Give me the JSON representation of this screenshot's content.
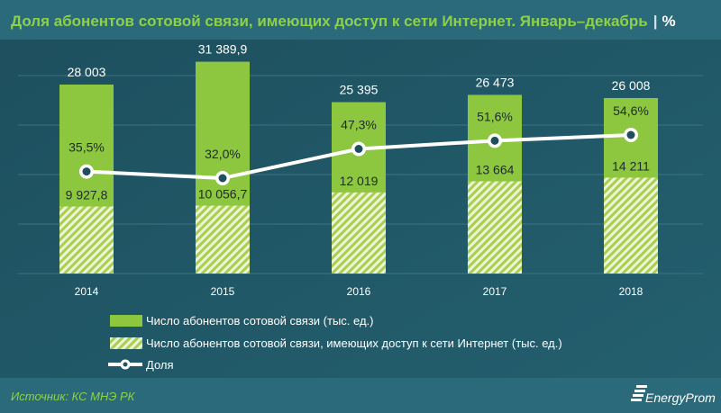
{
  "chart_data": {
    "type": "bar",
    "title": "Доля абонентов сотовой связи, имеющих доступ к сети Интернет. Январь–декабрь",
    "unit": "%",
    "categories": [
      "2014",
      "2015",
      "2016",
      "2017",
      "2018"
    ],
    "series": [
      {
        "name": "Число абонентов сотовой связи (тыс. ед.)",
        "type": "bar",
        "values": [
          28003,
          31389.9,
          25395,
          26473,
          26008
        ],
        "labels": [
          "28 003",
          "31 389,9",
          "25 395",
          "26 473",
          "26 008"
        ],
        "color": "#8dc63f"
      },
      {
        "name": "Число абонентов сотовой связи, имеющих доступ к сети Интернет (тыс. ед.)",
        "type": "bar-hatched",
        "values": [
          9927.8,
          10056.7,
          12019,
          13664,
          14211
        ],
        "labels": [
          "9 927,8",
          "10 056,7",
          "12 019",
          "13 664",
          "14 211"
        ],
        "color": "#c8e07a"
      },
      {
        "name": "Доля",
        "type": "line",
        "values": [
          35.5,
          32.0,
          47.3,
          51.6,
          54.6
        ],
        "labels": [
          "35,5%",
          "32,0%",
          "47,3%",
          "51,6%",
          "54,6%"
        ],
        "color": "#ffffff"
      }
    ],
    "grid": true,
    "legend_position": "bottom"
  },
  "footer": {
    "source": "Источник: КС МНЭ РК",
    "logo": "EnergyProm"
  }
}
